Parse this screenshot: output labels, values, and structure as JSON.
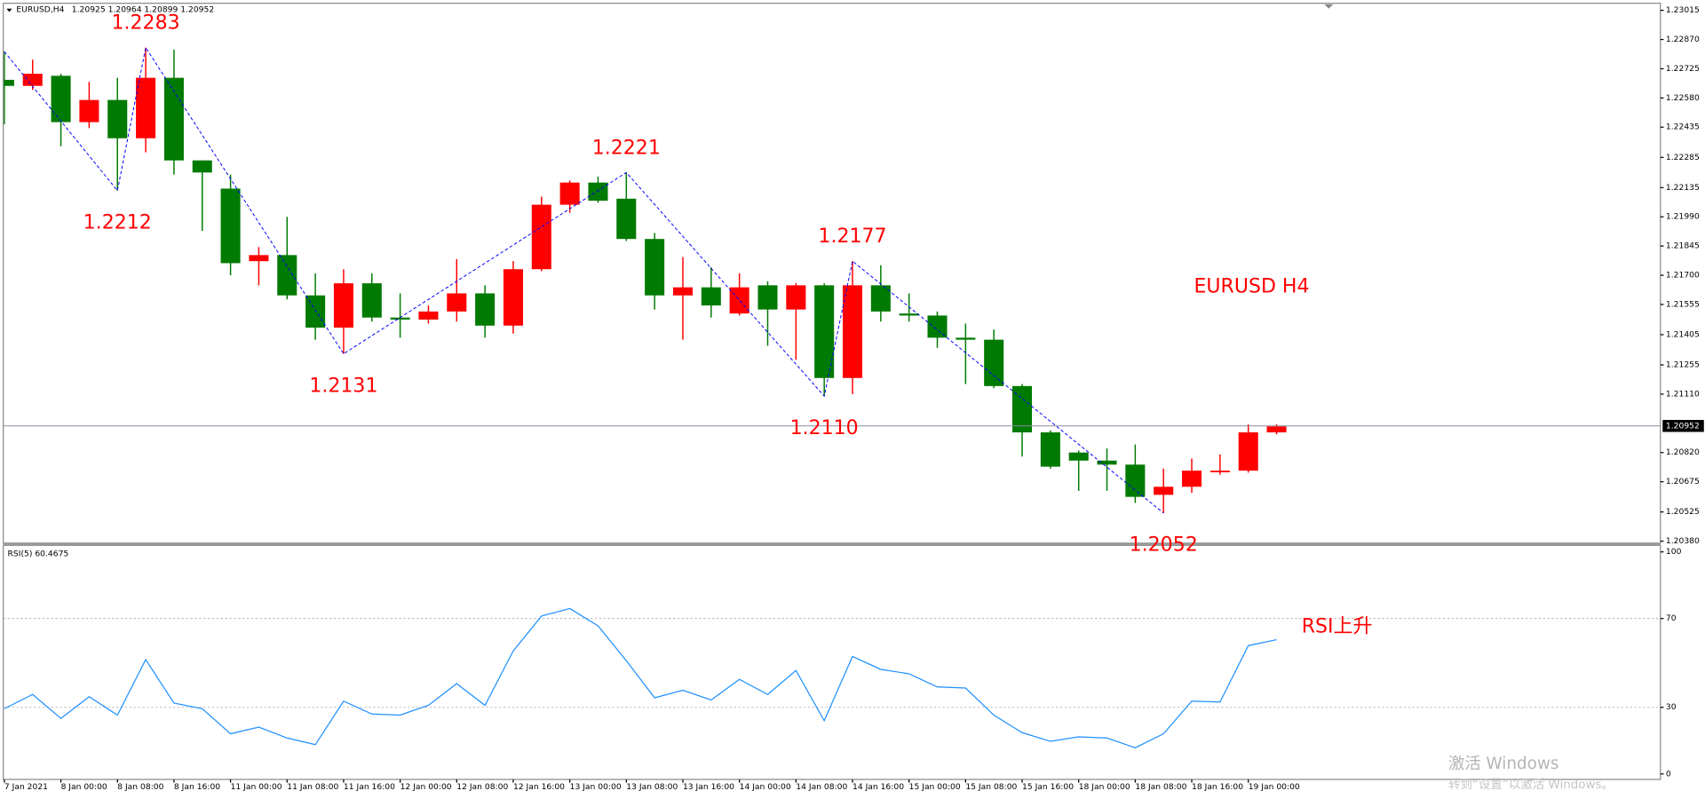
{
  "chart_data": [
    {
      "type": "candlestick",
      "title": "EURUSD,H4",
      "quote": "1.20925 1.20964 1.20899 1.20952",
      "categories": [
        "7 Jan 2021",
        null,
        "8 Jan 00:00",
        null,
        "8 Jan 08:00",
        null,
        "8 Jan 16:00",
        null,
        "11 Jan 00:00",
        null,
        "11 Jan 08:00",
        null,
        "11 Jan 16:00",
        null,
        "12 Jan 00:00",
        null,
        "12 Jan 08:00",
        null,
        "12 Jan 16:00",
        null,
        "13 Jan 00:00",
        null,
        "13 Jan 08:00",
        null,
        "13 Jan 16:00",
        null,
        "14 Jan 00:00",
        null,
        "14 Jan 08:00",
        null,
        "14 Jan 16:00",
        null,
        "15 Jan 00:00",
        null,
        "15 Jan 08:00",
        null,
        "15 Jan 16:00",
        null,
        "18 Jan 00:00",
        null,
        "18 Jan 08:00",
        null,
        "18 Jan 16:00",
        null,
        "19 Jan 00:00",
        null
      ],
      "open": [
        1.2267,
        1.2264,
        1.2269,
        1.2246,
        1.2257,
        1.2238,
        1.2268,
        1.2227,
        1.2213,
        1.2177,
        1.218,
        1.216,
        1.2144,
        1.2166,
        1.2149,
        1.2148,
        1.2152,
        1.2161,
        1.2145,
        1.2173,
        1.2205,
        1.2216,
        1.2208,
        1.2188,
        1.216,
        1.2164,
        1.2151,
        1.2165,
        1.2153,
        1.2165,
        1.2119,
        1.2165,
        1.2151,
        1.215,
        1.2139,
        1.2138,
        1.2115,
        1.2092,
        1.2082,
        1.2078,
        1.2076,
        1.2061,
        1.2065,
        1.2073,
        1.2073,
        1.2092
      ],
      "high": [
        1.2281,
        1.2277,
        1.227,
        1.2266,
        1.2268,
        1.2283,
        1.2282,
        1.2227,
        1.222,
        1.2184,
        1.2199,
        1.2171,
        1.2173,
        1.2171,
        1.2161,
        1.2155,
        1.2178,
        1.2165,
        1.2177,
        1.2209,
        1.2217,
        1.2219,
        1.2221,
        1.2191,
        1.2179,
        1.2174,
        1.2171,
        1.2167,
        1.2166,
        1.2166,
        1.2177,
        1.2175,
        1.2161,
        1.2152,
        1.2146,
        1.2143,
        1.2116,
        1.2093,
        1.2083,
        1.2084,
        1.2086,
        1.2074,
        1.2079,
        1.2081,
        1.2096,
        1.2096
      ],
      "low": [
        1.2245,
        1.2262,
        1.2234,
        1.2243,
        1.2212,
        1.2231,
        1.222,
        1.2192,
        1.217,
        1.2165,
        1.2158,
        1.2138,
        1.2131,
        1.2147,
        1.2139,
        1.2146,
        1.2147,
        1.2139,
        1.2141,
        1.2172,
        1.2201,
        1.2206,
        1.2187,
        1.2153,
        1.2138,
        1.2149,
        1.215,
        1.2135,
        1.2128,
        1.211,
        1.2111,
        1.2147,
        1.2147,
        1.2134,
        1.2116,
        1.2114,
        1.208,
        1.2074,
        1.2063,
        1.2063,
        1.2057,
        1.2052,
        1.2062,
        1.2071,
        1.2072,
        1.2091
      ],
      "close": [
        1.2264,
        1.227,
        1.2246,
        1.2257,
        1.2238,
        1.2268,
        1.2227,
        1.2221,
        1.2176,
        1.218,
        1.216,
        1.2144,
        1.2166,
        1.2149,
        1.2148,
        1.2152,
        1.2161,
        1.2145,
        1.2173,
        1.2205,
        1.2216,
        1.2207,
        1.2188,
        1.216,
        1.2164,
        1.2155,
        1.2164,
        1.2153,
        1.2165,
        1.2119,
        1.2165,
        1.2152,
        1.215,
        1.2139,
        1.2138,
        1.2115,
        1.2092,
        1.2075,
        1.2078,
        1.2076,
        1.206,
        1.2065,
        1.2073,
        1.2073,
        1.2092,
        1.2095
      ],
      "up_color": "#ff0000",
      "down_color": "#007a00",
      "zigzag": {
        "color": "#0000ff",
        "x": [
          0,
          4,
          5,
          12,
          22,
          29,
          30,
          41
        ],
        "values": [
          1.2281,
          1.2212,
          1.2283,
          1.2131,
          1.2221,
          1.211,
          1.2177,
          1.2052
        ],
        "value_labels": [
          null,
          "1.2212",
          "1.2283",
          "1.2131",
          "1.2221",
          "1.2110",
          "1.2177",
          "1.2052"
        ]
      },
      "annotation": "EURUSD H4",
      "annotation_color": "#ff0000",
      "last_price": 1.20952,
      "ylim": [
        1.2037,
        1.2305
      ],
      "yticks": [
        1.23015,
        {
          "value": 1.2287,
          "label": "1.22870"
        },
        1.22725,
        {
          "value": 1.2258,
          "label": "1.22580"
        },
        1.22435,
        1.22285,
        1.22135,
        {
          "value": 1.2199,
          "label": "1.21990"
        },
        1.21845,
        {
          "value": 1.217,
          "label": "1.21700"
        },
        1.21555,
        1.21405,
        1.21255,
        {
          "value": 1.2111,
          "label": "1.21110"
        },
        {
          "value": 1.2082,
          "label": "1.20820"
        },
        1.20675,
        1.20525,
        {
          "value": 1.2038,
          "label": "1.20380"
        }
      ]
    },
    {
      "type": "line",
      "title": "RSI(5) 60.4675",
      "series": [
        {
          "color": "#1e90ff",
          "values": [
            29.4,
            35.8,
            25.0,
            34.8,
            26.5,
            51.5,
            31.9,
            29.4,
            18.1,
            21.1,
            16.2,
            13.2,
            32.8,
            27.0,
            26.5,
            30.9,
            40.7,
            30.9,
            55.4,
            71.1,
            74.5,
            66.7,
            51.0,
            34.3,
            37.7,
            33.3,
            42.6,
            35.8,
            46.6,
            24.0,
            52.9,
            47.1,
            45.1,
            39.2,
            38.7,
            26.5,
            18.6,
            14.7,
            16.7,
            16.2,
            11.8,
            18.1,
            32.8,
            32.4,
            57.8,
            60.4675
          ]
        }
      ],
      "ylim": [
        0,
        100
      ],
      "yticks": [
        0,
        30,
        70,
        100
      ],
      "levels": [
        70,
        30
      ],
      "annotation": "RSI上升",
      "annotation_color": "#ff0000"
    }
  ],
  "watermark": {
    "title": "激活 Windows",
    "subtitle": "转到“设置”以激活 Windows。"
  }
}
